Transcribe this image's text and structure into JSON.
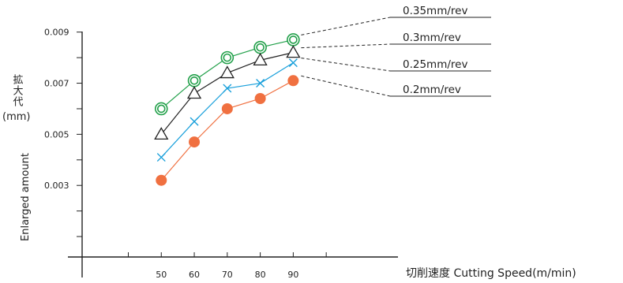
{
  "chart_data": {
    "type": "line",
    "xlabel": "切削速度 Cutting Speed(m/min)",
    "ylabel_jp": "拡大代",
    "ylabel_unit": "(mm)",
    "ylabel_en": "Enlarged amount",
    "x": [
      50,
      60,
      70,
      80,
      90
    ],
    "x_tick_labels": [
      "50",
      "60",
      "70",
      "80",
      "90"
    ],
    "y_tick_labels": [
      "0.009",
      "0.007",
      "0.005",
      "0.003"
    ],
    "y_ticks": [
      0.009,
      0.007,
      0.005,
      0.003
    ],
    "xlim": [
      26,
      116
    ],
    "ylim": [
      0.0002,
      0.0097
    ],
    "grid": false,
    "series": [
      {
        "name": "0.35mm/rev",
        "values": [
          0.006,
          0.0071,
          0.008,
          0.0084,
          0.0087
        ],
        "marker": "double-circle",
        "color": "#22a04a"
      },
      {
        "name": "0.3mm/rev",
        "values": [
          0.005,
          0.0066,
          0.0074,
          0.0079,
          0.0082
        ],
        "marker": "triangle",
        "color": "#222222"
      },
      {
        "name": "0.25mm/rev",
        "values": [
          0.0041,
          0.0055,
          0.0068,
          0.007,
          0.0078
        ],
        "marker": "cross",
        "color": "#1aa0db"
      },
      {
        "name": "0.2mm/rev",
        "values": [
          0.0032,
          0.0047,
          0.006,
          0.0064,
          0.0071
        ],
        "marker": "filled-circle",
        "color": "#f07040"
      }
    ]
  }
}
